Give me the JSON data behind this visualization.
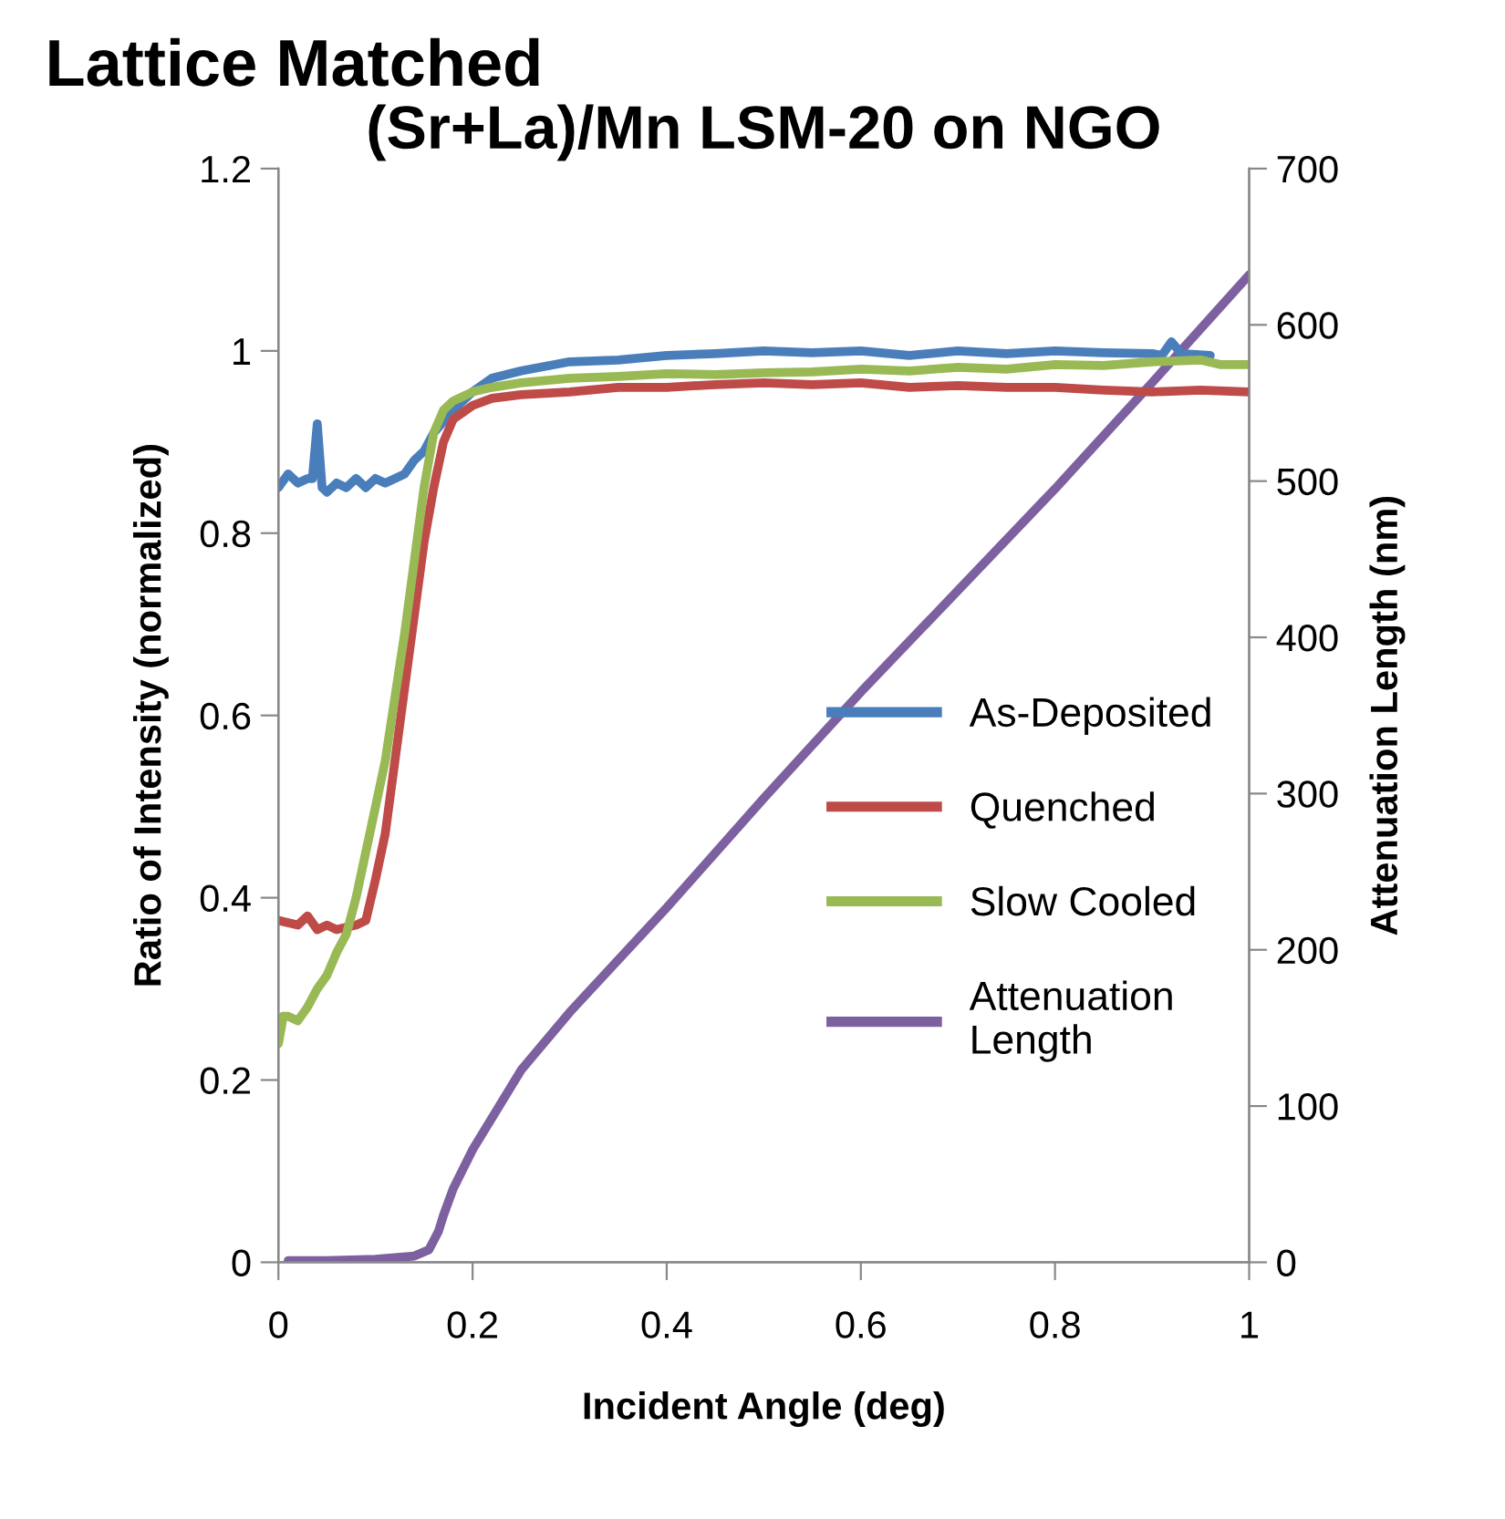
{
  "chart_data": {
    "type": "line",
    "title": "Lattice Matched",
    "subtitle": "(Sr+La)/Mn LSM-20 on NGO",
    "xlabel": "Incident Angle (deg)",
    "ylabel": "Ratio of Intensity (normalized)",
    "y2label": "Attenuation Length (nm)",
    "xlim": [
      0,
      1
    ],
    "xticks": [
      0,
      0.2,
      0.4,
      0.6,
      0.8,
      {
        "value": 1,
        "label": "1"
      }
    ],
    "ylim": [
      0,
      1.2
    ],
    "yticks": [
      0,
      0.2,
      0.4,
      0.6,
      0.8,
      {
        "value": 1,
        "label": "1"
      },
      1.2
    ],
    "y2lim": [
      0,
      700
    ],
    "y2ticks": [
      0,
      100,
      200,
      300,
      400,
      500,
      600,
      700
    ],
    "grid": false,
    "legend": "right",
    "marker": "none",
    "line_style": "solid",
    "series": [
      {
        "name": "As-Deposited",
        "color": "#4a7ebb",
        "x": [
          0,
          0.01,
          0.02,
          0.03,
          0.035,
          0.04,
          0.045,
          0.05,
          0.06,
          0.07,
          0.08,
          0.09,
          0.1,
          0.11,
          0.12,
          0.13,
          0.14,
          0.15,
          0.16,
          0.18,
          0.2,
          0.22,
          0.25,
          0.3,
          0.35,
          0.4,
          0.45,
          0.5,
          0.55,
          0.6,
          0.65,
          0.7,
          0.75,
          0.8,
          0.85,
          0.9,
          0.91,
          0.92,
          0.93,
          0.96
        ],
        "values": [
          0.85,
          0.865,
          0.855,
          0.86,
          0.86,
          0.92,
          0.85,
          0.845,
          0.855,
          0.85,
          0.86,
          0.85,
          0.86,
          0.855,
          0.86,
          0.865,
          0.88,
          0.89,
          0.91,
          0.935,
          0.955,
          0.97,
          0.978,
          0.988,
          0.99,
          0.995,
          0.997,
          1.0,
          0.998,
          1.0,
          0.995,
          1.0,
          0.997,
          1.0,
          0.998,
          0.997,
          0.995,
          1.01,
          0.997,
          0.995
        ]
      },
      {
        "name": "Quenched",
        "color": "#be4b48",
        "x": [
          0,
          0.02,
          0.03,
          0.04,
          0.05,
          0.06,
          0.08,
          0.09,
          0.1,
          0.11,
          0.12,
          0.13,
          0.14,
          0.15,
          0.16,
          0.17,
          0.18,
          0.2,
          0.22,
          0.25,
          0.3,
          0.35,
          0.4,
          0.45,
          0.5,
          0.55,
          0.6,
          0.65,
          0.7,
          0.75,
          0.8,
          0.85,
          0.9,
          0.95,
          1.0
        ],
        "values": [
          0.375,
          0.37,
          0.38,
          0.365,
          0.37,
          0.365,
          0.37,
          0.375,
          0.42,
          0.47,
          0.55,
          0.63,
          0.71,
          0.79,
          0.85,
          0.9,
          0.925,
          0.94,
          0.948,
          0.952,
          0.955,
          0.96,
          0.96,
          0.963,
          0.965,
          0.963,
          0.965,
          0.96,
          0.962,
          0.96,
          0.96,
          0.957,
          0.955,
          0.957,
          0.955
        ]
      },
      {
        "name": "Slow Cooled",
        "color": "#98b954",
        "x": [
          0,
          0.005,
          0.01,
          0.02,
          0.03,
          0.04,
          0.05,
          0.06,
          0.07,
          0.08,
          0.09,
          0.1,
          0.11,
          0.12,
          0.13,
          0.14,
          0.15,
          0.16,
          0.17,
          0.18,
          0.2,
          0.22,
          0.25,
          0.3,
          0.35,
          0.4,
          0.45,
          0.5,
          0.55,
          0.6,
          0.65,
          0.7,
          0.75,
          0.8,
          0.85,
          0.9,
          0.95,
          0.97,
          1.0
        ],
        "values": [
          0.24,
          0.27,
          0.27,
          0.265,
          0.28,
          0.3,
          0.315,
          0.34,
          0.36,
          0.4,
          0.45,
          0.5,
          0.55,
          0.62,
          0.69,
          0.77,
          0.85,
          0.91,
          0.935,
          0.945,
          0.955,
          0.96,
          0.965,
          0.97,
          0.972,
          0.975,
          0.974,
          0.976,
          0.977,
          0.98,
          0.978,
          0.982,
          0.98,
          0.985,
          0.984,
          0.988,
          0.99,
          0.985,
          0.985
        ]
      },
      {
        "name": "Attenuation Length",
        "color": "#7d60a0",
        "axis": "y2",
        "x": [
          0.01,
          0.05,
          0.1,
          0.14,
          0.155,
          0.165,
          0.17,
          0.18,
          0.2,
          0.25,
          0.3,
          0.4,
          0.5,
          0.6,
          0.7,
          0.8,
          0.9,
          1.0
        ],
        "values": [
          1,
          1,
          2,
          4,
          8,
          20,
          30,
          47,
          72,
          123,
          160,
          227,
          297,
          365,
          430,
          495,
          563,
          632
        ]
      }
    ]
  }
}
